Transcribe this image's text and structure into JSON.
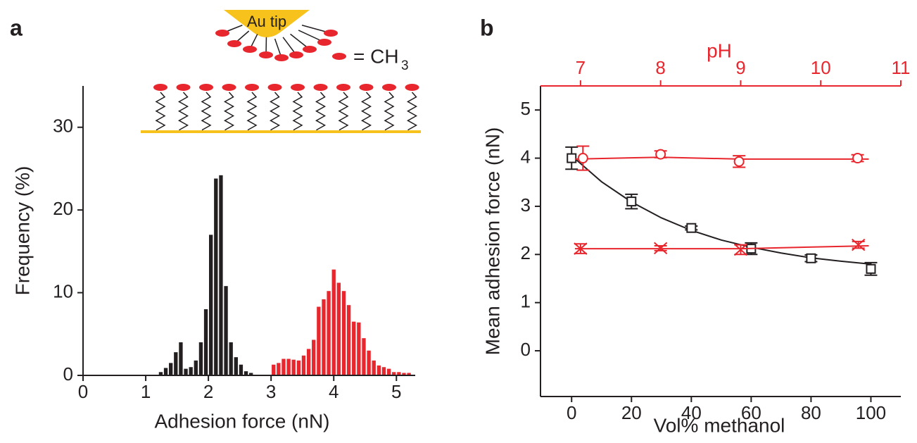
{
  "schematic": {
    "tip_label": "Au tip",
    "legend_text": "= CH",
    "legend_subscript": "3"
  },
  "chart_data": [
    {
      "type": "histogram",
      "panel": "a",
      "xlabel": "Adhesion force (nN)",
      "ylabel": "Frequency (%)",
      "xlim": [
        0,
        5.3
      ],
      "ylim": [
        0,
        35
      ],
      "xticks": [
        0,
        1,
        2,
        3,
        4,
        5
      ],
      "yticks": [
        0,
        10,
        20,
        30
      ],
      "series": [
        {
          "color": "#231f20",
          "bins": [
            1.2,
            1.28,
            1.36,
            1.44,
            1.52,
            1.6,
            1.68,
            1.76,
            1.84,
            1.92,
            2.0,
            2.08,
            2.16,
            2.24,
            2.32,
            2.4,
            2.48,
            2.56,
            2.64,
            2.72
          ],
          "values": [
            0.4,
            0.9,
            1.5,
            2.8,
            4.0,
            0.8,
            1.0,
            1.8,
            4.0,
            8.0,
            17.0,
            23.8,
            24.2,
            10.8,
            4.0,
            2.2,
            1.3,
            0.5,
            0.3
          ]
        },
        {
          "color": "#e8262d",
          "bins": [
            3.0,
            3.08,
            3.16,
            3.24,
            3.32,
            3.4,
            3.48,
            3.56,
            3.64,
            3.72,
            3.8,
            3.88,
            3.96,
            4.04,
            4.12,
            4.2,
            4.28,
            4.36,
            4.44,
            4.52,
            4.6,
            4.68,
            4.76,
            4.84,
            4.92,
            5.0,
            5.08,
            5.16,
            5.24
          ],
          "values": [
            1.3,
            1.5,
            2.0,
            2.0,
            1.9,
            1.8,
            2.4,
            3.2,
            4.3,
            8.3,
            9.2,
            10.2,
            12.8,
            11.2,
            10.2,
            8.5,
            6.5,
            6.4,
            4.5,
            3.0,
            1.8,
            1.2,
            1.0,
            0.8,
            0.4,
            0.4,
            0.3,
            0.3
          ]
        }
      ]
    },
    {
      "type": "scatter",
      "panel": "b",
      "xlabel": "Vol% methanol",
      "x2label": "pH",
      "ylabel": "Mean adhesion force (nN)",
      "xlim": [
        -10.4,
        110
      ],
      "x2lim": [
        6.5,
        11
      ],
      "ylim": [
        -0.95,
        5.5
      ],
      "xticks": [
        0,
        20,
        40,
        60,
        80,
        100
      ],
      "x2ticks": [
        7,
        8,
        9,
        10,
        11
      ],
      "yticks": [
        0,
        1,
        2,
        3,
        4,
        5
      ],
      "x2color": "#e8262d",
      "series": [
        {
          "color": "#231f20",
          "marker": "square",
          "xaxis": "bottom",
          "x": [
            0,
            20,
            40,
            60,
            80,
            100
          ],
          "values": [
            4.0,
            3.1,
            2.55,
            2.12,
            1.92,
            1.7
          ],
          "errors": [
            0.23,
            0.15,
            0.04,
            0.12,
            0.07,
            0.13
          ],
          "fit_x": [
            0,
            10,
            20,
            30,
            40,
            50,
            60,
            70,
            80,
            90,
            100
          ],
          "fit_y": [
            4.05,
            3.51,
            3.09,
            2.76,
            2.5,
            2.3,
            2.15,
            2.03,
            1.93,
            1.86,
            1.8
          ]
        },
        {
          "color": "#e8262d",
          "marker": "circle",
          "xaxis": "top",
          "x": [
            7.03,
            8.0,
            8.98,
            10.46
          ],
          "values": [
            4.0,
            4.08,
            3.93,
            4.0
          ],
          "errors": [
            0.25,
            0.07,
            0.12,
            0.07
          ],
          "fit_x": [
            6.93,
            8.0,
            9.0,
            10.6
          ],
          "fit_y": [
            3.98,
            4.02,
            3.98,
            3.98
          ]
        },
        {
          "color": "#e8262d",
          "marker": "x",
          "xaxis": "top",
          "x": [
            7.0,
            8.0,
            9.0,
            10.47
          ],
          "values": [
            2.12,
            2.13,
            2.1,
            2.2
          ],
          "errors": [
            0.1,
            0.05,
            0.1,
            0.07
          ],
          "fit_x": [
            6.93,
            9.0,
            10.6
          ],
          "fit_y": [
            2.12,
            2.12,
            2.18
          ]
        }
      ]
    }
  ]
}
